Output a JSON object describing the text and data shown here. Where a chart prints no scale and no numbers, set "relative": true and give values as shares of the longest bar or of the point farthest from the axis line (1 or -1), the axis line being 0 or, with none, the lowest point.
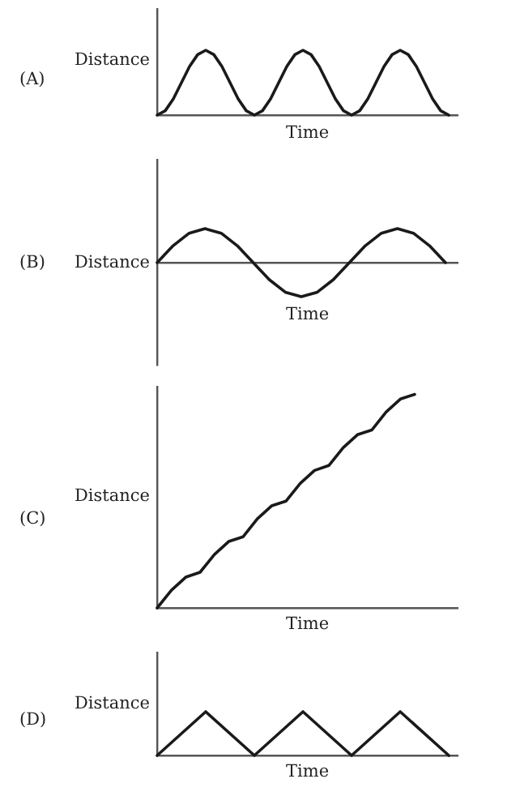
{
  "chart_data": [
    {
      "type": "line",
      "annotations": [
        "(A)"
      ],
      "xlabel": "Time",
      "ylabel": "Distance",
      "relative": true,
      "marker": "none",
      "color": "#1a1a1a",
      "categories": [
        null,
        null,
        null,
        null,
        null,
        null,
        null,
        null,
        null,
        null,
        null,
        null,
        null,
        null,
        null,
        null,
        null,
        null,
        null,
        null,
        null,
        null,
        null,
        null,
        null,
        null,
        null,
        null,
        null,
        null,
        null,
        null,
        null,
        null,
        null,
        null,
        null
      ],
      "values": [
        0,
        0.067,
        0.25,
        0.5,
        0.75,
        0.933,
        1,
        0.933,
        0.75,
        0.5,
        0.25,
        0.067,
        0,
        0.067,
        0.25,
        0.5,
        0.75,
        0.933,
        1,
        0.933,
        0.75,
        0.5,
        0.25,
        0.067,
        0,
        0.067,
        0.25,
        0.5,
        0.75,
        0.933,
        1,
        0.933,
        0.75,
        0.5,
        0.25,
        0.067,
        0
      ]
    },
    {
      "type": "line",
      "annotations": [
        "(B)"
      ],
      "xlabel": "Time",
      "ylabel": "Distance",
      "relative": true,
      "marker": "none",
      "color": "#1a1a1a",
      "categories": [
        null,
        null,
        null,
        null,
        null,
        null,
        null,
        null,
        null,
        null,
        null,
        null,
        null,
        null,
        null,
        null,
        null,
        null,
        null
      ],
      "values": [
        0,
        0.5,
        0.866,
        1,
        0.866,
        0.5,
        0,
        -0.5,
        -0.866,
        -1,
        -0.866,
        -0.5,
        0,
        0.5,
        0.866,
        1,
        0.866,
        0.5,
        0
      ]
    },
    {
      "type": "line",
      "annotations": [
        "(C)"
      ],
      "xlabel": "Time",
      "ylabel": "Distance",
      "relative": true,
      "marker": "none",
      "color": "#1a1a1a",
      "categories": [
        null,
        null,
        null,
        null,
        null,
        null,
        null,
        null,
        null,
        null,
        null,
        null,
        null,
        null,
        null,
        null,
        null,
        null,
        null
      ],
      "values": [
        0,
        0.083,
        0.144,
        0.167,
        0.25,
        0.311,
        0.333,
        0.417,
        0.478,
        0.5,
        0.583,
        0.644,
        0.667,
        0.75,
        0.811,
        0.833,
        0.917,
        0.978,
        1
      ]
    },
    {
      "type": "line",
      "annotations": [
        "(D)"
      ],
      "xlabel": "Time",
      "ylabel": "Distance",
      "relative": true,
      "marker": "none",
      "color": "#1a1a1a",
      "categories": [
        null,
        null,
        null,
        null,
        null,
        null,
        null
      ],
      "values": [
        0,
        1,
        0,
        1,
        0,
        1,
        0
      ]
    }
  ]
}
